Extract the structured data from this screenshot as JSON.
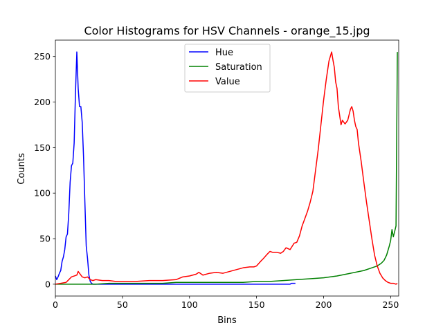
{
  "chart_data": {
    "type": "line",
    "title": "Color Histograms for HSV Channels - orange_15.jpg",
    "xlabel": "Bins",
    "ylabel": "Counts",
    "xlim": [
      0,
      256
    ],
    "ylim": [
      -13,
      268
    ],
    "xticks": [
      0,
      50,
      100,
      150,
      200,
      250
    ],
    "yticks": [
      0,
      50,
      100,
      150,
      200,
      250
    ],
    "grid": false,
    "legend_position": "top-center",
    "series": [
      {
        "name": "Hue",
        "color": "#0000ff",
        "points": [
          [
            0,
            9
          ],
          [
            1,
            5
          ],
          [
            2,
            8
          ],
          [
            3,
            12
          ],
          [
            4,
            15
          ],
          [
            5,
            25
          ],
          [
            6,
            30
          ],
          [
            7,
            38
          ],
          [
            8,
            52
          ],
          [
            9,
            55
          ],
          [
            10,
            78
          ],
          [
            11,
            112
          ],
          [
            12,
            130
          ],
          [
            13,
            133
          ],
          [
            14,
            155
          ],
          [
            15,
            210
          ],
          [
            16,
            255
          ],
          [
            17,
            215
          ],
          [
            18,
            195
          ],
          [
            19,
            195
          ],
          [
            20,
            178
          ],
          [
            21,
            140
          ],
          [
            22,
            90
          ],
          [
            23,
            42
          ],
          [
            24,
            28
          ],
          [
            25,
            10
          ],
          [
            26,
            3
          ],
          [
            27,
            1
          ],
          [
            28,
            0
          ],
          [
            30,
            0
          ],
          [
            40,
            0
          ],
          [
            60,
            0
          ],
          [
            80,
            0
          ],
          [
            100,
            0
          ],
          [
            120,
            0
          ],
          [
            140,
            0
          ],
          [
            160,
            0
          ],
          [
            175,
            0
          ],
          [
            176,
            1
          ],
          [
            177,
            1
          ],
          [
            178,
            1
          ],
          [
            179,
            1
          ]
        ]
      },
      {
        "name": "Saturation",
        "color": "#008000",
        "points": [
          [
            0,
            0
          ],
          [
            20,
            0
          ],
          [
            30,
            0
          ],
          [
            40,
            1
          ],
          [
            60,
            1
          ],
          [
            80,
            1
          ],
          [
            90,
            2
          ],
          [
            100,
            2
          ],
          [
            120,
            2
          ],
          [
            130,
            2
          ],
          [
            140,
            2
          ],
          [
            150,
            3
          ],
          [
            160,
            3
          ],
          [
            170,
            4
          ],
          [
            180,
            5
          ],
          [
            190,
            6
          ],
          [
            200,
            7
          ],
          [
            210,
            9
          ],
          [
            220,
            12
          ],
          [
            230,
            15
          ],
          [
            236,
            18
          ],
          [
            240,
            20
          ],
          [
            243,
            23
          ],
          [
            245,
            26
          ],
          [
            247,
            32
          ],
          [
            249,
            42
          ],
          [
            250,
            48
          ],
          [
            251,
            60
          ],
          [
            252,
            52
          ],
          [
            253,
            58
          ],
          [
            254,
            64
          ],
          [
            255,
            255
          ]
        ]
      },
      {
        "name": "Value",
        "color": "#ff0000",
        "points": [
          [
            0,
            0
          ],
          [
            4,
            1
          ],
          [
            8,
            2
          ],
          [
            10,
            5
          ],
          [
            12,
            8
          ],
          [
            14,
            9
          ],
          [
            16,
            10
          ],
          [
            17,
            14
          ],
          [
            18,
            12
          ],
          [
            20,
            8
          ],
          [
            22,
            7
          ],
          [
            24,
            8
          ],
          [
            26,
            5
          ],
          [
            28,
            4
          ],
          [
            30,
            5
          ],
          [
            35,
            4
          ],
          [
            40,
            4
          ],
          [
            45,
            3
          ],
          [
            50,
            3
          ],
          [
            60,
            3
          ],
          [
            70,
            4
          ],
          [
            80,
            4
          ],
          [
            90,
            5
          ],
          [
            95,
            8
          ],
          [
            100,
            9
          ],
          [
            105,
            11
          ],
          [
            107,
            13
          ],
          [
            110,
            10
          ],
          [
            115,
            12
          ],
          [
            120,
            13
          ],
          [
            125,
            12
          ],
          [
            130,
            14
          ],
          [
            135,
            16
          ],
          [
            140,
            18
          ],
          [
            145,
            19
          ],
          [
            148,
            19
          ],
          [
            150,
            20
          ],
          [
            153,
            25
          ],
          [
            155,
            28
          ],
          [
            158,
            33
          ],
          [
            160,
            36
          ],
          [
            162,
            35
          ],
          [
            165,
            35
          ],
          [
            168,
            34
          ],
          [
            170,
            36
          ],
          [
            172,
            40
          ],
          [
            175,
            38
          ],
          [
            178,
            45
          ],
          [
            180,
            46
          ],
          [
            182,
            53
          ],
          [
            184,
            64
          ],
          [
            186,
            72
          ],
          [
            188,
            80
          ],
          [
            190,
            90
          ],
          [
            192,
            102
          ],
          [
            194,
            125
          ],
          [
            196,
            148
          ],
          [
            198,
            175
          ],
          [
            200,
            202
          ],
          [
            202,
            225
          ],
          [
            204,
            245
          ],
          [
            205,
            250
          ],
          [
            206,
            255
          ],
          [
            207,
            246
          ],
          [
            208,
            238
          ],
          [
            209,
            222
          ],
          [
            210,
            215
          ],
          [
            211,
            195
          ],
          [
            212,
            185
          ],
          [
            213,
            175
          ],
          [
            214,
            180
          ],
          [
            215,
            178
          ],
          [
            216,
            176
          ],
          [
            218,
            180
          ],
          [
            220,
            192
          ],
          [
            221,
            195
          ],
          [
            222,
            190
          ],
          [
            223,
            180
          ],
          [
            224,
            173
          ],
          [
            225,
            170
          ],
          [
            226,
            155
          ],
          [
            228,
            135
          ],
          [
            230,
            112
          ],
          [
            232,
            90
          ],
          [
            234,
            70
          ],
          [
            236,
            50
          ],
          [
            238,
            32
          ],
          [
            240,
            20
          ],
          [
            242,
            12
          ],
          [
            244,
            7
          ],
          [
            246,
            4
          ],
          [
            248,
            2
          ],
          [
            250,
            1
          ],
          [
            252,
            1
          ],
          [
            254,
            0
          ],
          [
            255,
            1
          ]
        ]
      }
    ]
  }
}
